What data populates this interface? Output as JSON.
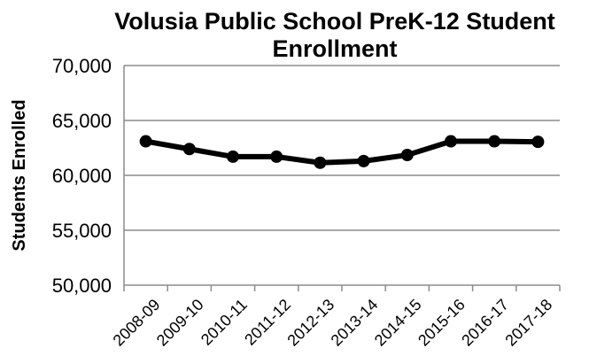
{
  "chart_data": {
    "type": "line",
    "title_lines": [
      "Volusia Public School PreK-12 Student",
      "Enrollment"
    ],
    "xlabel": "",
    "ylabel": "Students Enrolled",
    "categories": [
      "2008-09",
      "2009-10",
      "2010-11",
      "2011-12",
      "2012-13",
      "2013-14",
      "2014-15",
      "2015-16",
      "2016-17",
      "2017-18"
    ],
    "series": [
      {
        "values": [
          63100,
          62400,
          61700,
          61700,
          61150,
          61300,
          61850,
          63100,
          63100,
          63050
        ]
      }
    ],
    "ylim": [
      50000,
      70000
    ],
    "yticks": [
      50000,
      55000,
      60000,
      65000,
      70000
    ],
    "ytick_labels": [
      "50,000",
      "55,000",
      "60,000",
      "65,000",
      "70,000"
    ],
    "grid": true,
    "legend": "none",
    "colors": {
      "line": "#000000",
      "grid": "#8c8c8c",
      "axis": "#8c8c8c"
    }
  }
}
